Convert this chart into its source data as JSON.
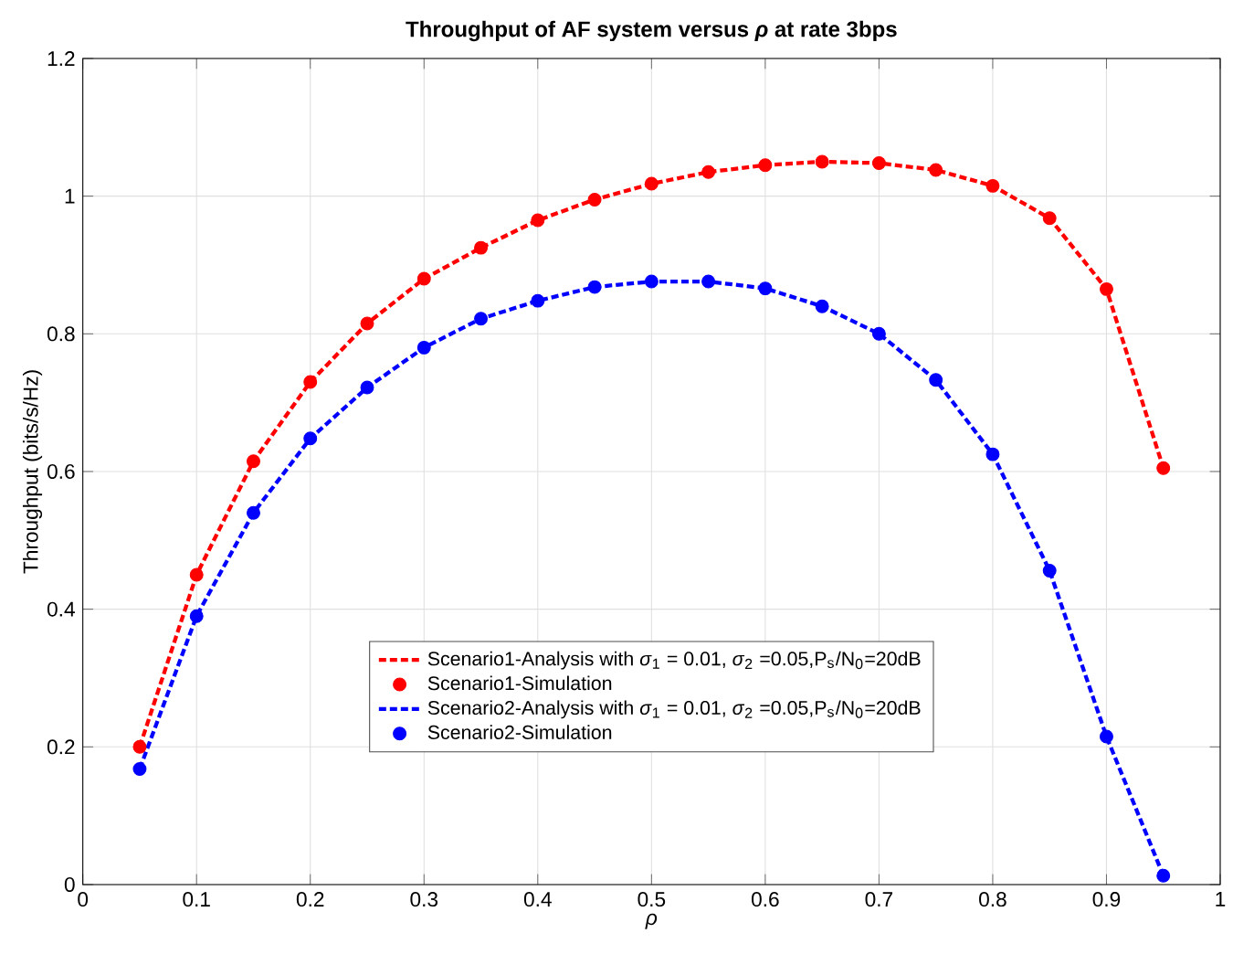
{
  "chart_data": {
    "type": "line",
    "title": "Throughput of AF system versus *ρ* at rate 3bps",
    "xlabel": "ρ",
    "ylabel": "Throughput (bits/s/Hz)",
    "xlim": [
      0,
      1
    ],
    "ylim": [
      0,
      1.2
    ],
    "xticks": [
      0,
      0.1,
      0.2,
      0.3,
      0.4,
      0.5,
      0.6,
      0.7,
      0.8,
      0.9,
      1
    ],
    "yticks": [
      0,
      0.2,
      0.4,
      0.6,
      0.8,
      1,
      1.2
    ],
    "grid": true,
    "legend": "bottom",
    "x": [
      0.05,
      0.1,
      0.15,
      0.2,
      0.25,
      0.3,
      0.35,
      0.4,
      0.45,
      0.5,
      0.55,
      0.6,
      0.65,
      0.7,
      0.75,
      0.8,
      0.85,
      0.9,
      0.95
    ],
    "series": [
      {
        "name": "Scenario1-Analysis with *σ*$_{1}$ = 0.01, *σ*$_{2}$ =0.05,P$_{s}$/N$_{0}$=20dB",
        "line_style": "dashed",
        "marker": "none",
        "color": "#ff0000",
        "values": [
          0.2,
          0.45,
          0.615,
          0.73,
          0.815,
          0.88,
          0.925,
          0.965,
          0.995,
          1.018,
          1.035,
          1.045,
          1.05,
          1.048,
          1.038,
          1.015,
          0.968,
          0.865,
          0.605
        ]
      },
      {
        "name": "Scenario1-Simulation",
        "type": "scatter",
        "marker": "circle",
        "color": "#ff0000",
        "values": [
          0.2,
          0.45,
          0.615,
          0.73,
          0.815,
          0.88,
          0.925,
          0.965,
          0.995,
          1.018,
          1.035,
          1.045,
          1.05,
          1.048,
          1.038,
          1.015,
          0.968,
          0.865,
          0.605
        ]
      },
      {
        "name": "Scenario2-Analysis with *σ*$_{1}$ = 0.01, *σ*$_{2}$ =0.05,P$_{s}$/N$_{0}$=20dB",
        "line_style": "dashed",
        "marker": "none",
        "color": "#0000ff",
        "values": [
          0.168,
          0.39,
          0.54,
          0.648,
          0.722,
          0.78,
          0.822,
          0.848,
          0.868,
          0.876,
          0.876,
          0.866,
          0.84,
          0.8,
          0.733,
          0.625,
          0.456,
          0.215,
          0.013
        ]
      },
      {
        "name": "Scenario2-Simulation",
        "type": "scatter",
        "marker": "circle",
        "color": "#0000ff",
        "values": [
          0.168,
          0.39,
          0.54,
          0.648,
          0.722,
          0.78,
          0.822,
          0.848,
          0.868,
          0.876,
          0.876,
          0.866,
          0.84,
          0.8,
          0.733,
          0.625,
          0.456,
          0.215,
          0.013
        ]
      }
    ]
  }
}
